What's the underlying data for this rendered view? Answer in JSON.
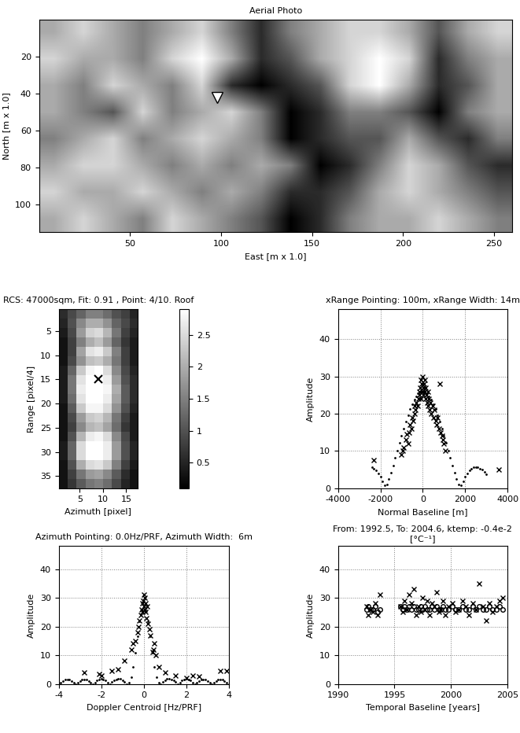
{
  "chart_data": [
    {
      "type": "image",
      "title": "Aerial Photo",
      "x_label": "East [m x 1.0]",
      "y_label": "North [m x 1.0]",
      "xlim": [
        0,
        260
      ],
      "ylim": [
        115,
        0
      ],
      "xticks": [
        50,
        100,
        150,
        200,
        250
      ],
      "yticks": [
        20,
        40,
        60,
        80,
        100
      ],
      "grid": false,
      "cells": [
        [
          0.6,
          0.7,
          0.6,
          0.5,
          0.6,
          0.7,
          0.5,
          0.3,
          0.5,
          0.6,
          0.7,
          0.7,
          0.6,
          0.4,
          0.6,
          0.7
        ],
        [
          0.7,
          0.6,
          0.6,
          0.5,
          0.7,
          0.8,
          0.6,
          0.3,
          0.4,
          0.6,
          0.7,
          0.8,
          0.7,
          0.3,
          0.5,
          0.6
        ],
        [
          0.6,
          0.5,
          0.7,
          0.6,
          0.5,
          0.7,
          0.3,
          0.2,
          0.3,
          0.4,
          0.7,
          0.8,
          0.6,
          0.3,
          0.4,
          0.6
        ],
        [
          0.6,
          0.5,
          0.4,
          0.7,
          0.5,
          0.6,
          0.7,
          0.5,
          0.2,
          0.3,
          0.5,
          0.5,
          0.4,
          0.2,
          0.5,
          0.6
        ],
        [
          0.5,
          0.6,
          0.7,
          0.5,
          0.6,
          0.7,
          0.6,
          0.5,
          0.2,
          0.3,
          0.4,
          0.4,
          0.6,
          0.4,
          0.3,
          0.5
        ],
        [
          0.6,
          0.7,
          0.7,
          0.6,
          0.5,
          0.6,
          0.5,
          0.6,
          0.5,
          0.2,
          0.3,
          0.5,
          0.7,
          0.6,
          0.4,
          0.3
        ],
        [
          0.7,
          0.6,
          0.6,
          0.7,
          0.6,
          0.5,
          0.6,
          0.5,
          0.3,
          0.3,
          0.4,
          0.6,
          0.7,
          0.6,
          0.5,
          0.4
        ],
        [
          0.6,
          0.7,
          0.6,
          0.5,
          0.7,
          0.6,
          0.5,
          0.4,
          0.2,
          0.3,
          0.5,
          0.6,
          0.6,
          0.7,
          0.6,
          0.5
        ]
      ],
      "marker_point": {
        "x": 98,
        "y": 42,
        "marker": "triangle_down",
        "color": "white"
      }
    },
    {
      "type": "heatmap",
      "title": "RCS: 47000sqm, Fit: 0.91 , Point: 4/10. Roof",
      "x_label": "Azimuth [pixel]",
      "y_label": "Range [pixel/4]",
      "xlim": [
        0.5,
        17.5
      ],
      "ylim": [
        37.5,
        0.5
      ],
      "xticks": [
        5,
        10,
        15
      ],
      "yticks": [
        5,
        10,
        15,
        20,
        25,
        30,
        35
      ],
      "grid": false,
      "cells": [
        [
          0.6,
          0.9,
          1.2,
          1.5,
          1.5,
          1.3,
          1.0,
          0.8,
          0.5
        ],
        [
          0.5,
          1.0,
          1.6,
          2.0,
          2.0,
          1.7,
          1.2,
          0.9,
          0.6
        ],
        [
          0.4,
          0.9,
          1.8,
          2.4,
          2.5,
          2.1,
          1.4,
          0.8,
          0.5
        ],
        [
          0.3,
          0.8,
          1.5,
          2.0,
          2.2,
          1.8,
          1.2,
          0.7,
          0.4
        ],
        [
          0.3,
          0.8,
          1.9,
          2.6,
          2.7,
          2.3,
          1.5,
          0.8,
          0.4
        ],
        [
          0.3,
          0.9,
          1.7,
          2.2,
          2.3,
          2.0,
          1.4,
          0.8,
          0.4
        ],
        [
          0.4,
          1.2,
          2.3,
          2.8,
          2.9,
          2.5,
          1.6,
          0.9,
          0.5
        ],
        [
          0.4,
          1.4,
          2.6,
          2.9,
          2.9,
          2.7,
          1.8,
          1.0,
          0.6
        ],
        [
          0.4,
          1.4,
          2.7,
          2.9,
          2.9,
          2.8,
          2.0,
          1.1,
          0.6
        ],
        [
          0.4,
          1.3,
          2.6,
          2.9,
          2.9,
          2.7,
          1.9,
          1.1,
          0.6
        ],
        [
          0.3,
          1.1,
          2.3,
          2.8,
          2.8,
          2.5,
          1.7,
          1.0,
          0.5
        ],
        [
          0.3,
          0.9,
          1.8,
          2.3,
          2.4,
          2.1,
          1.4,
          0.8,
          0.4
        ],
        [
          0.3,
          0.8,
          1.6,
          2.1,
          2.2,
          1.9,
          1.3,
          0.7,
          0.4
        ],
        [
          0.3,
          1.0,
          2.1,
          2.7,
          2.8,
          2.5,
          1.6,
          0.9,
          0.4
        ],
        [
          0.4,
          1.2,
          2.5,
          2.9,
          2.9,
          2.7,
          1.8,
          1.0,
          0.5
        ],
        [
          0.4,
          1.2,
          2.5,
          2.9,
          2.9,
          2.7,
          1.8,
          1.0,
          0.5
        ],
        [
          0.3,
          1.0,
          2.0,
          2.5,
          2.6,
          2.3,
          1.5,
          0.8,
          0.4
        ],
        [
          0.3,
          0.8,
          1.4,
          1.8,
          1.9,
          1.6,
          1.1,
          0.6,
          0.3
        ],
        [
          0.3,
          0.7,
          1.1,
          1.4,
          1.5,
          1.3,
          0.9,
          0.5,
          0.3
        ]
      ],
      "colorbar_range": [
        0.1,
        2.9
      ],
      "colorbar_ticks": [
        0.5,
        1,
        1.5,
        2,
        2.5
      ],
      "marker_point": {
        "x": 9,
        "y": 15,
        "marker": "x",
        "color": "black"
      }
    },
    {
      "type": "scatter",
      "title": "xRange Pointing: 100m, xRange Width: 14m",
      "x_label": "Normal Baseline [m]",
      "y_label": "Amplitude",
      "xlim": [
        -4000,
        4000
      ],
      "ylim": [
        0,
        48
      ],
      "xticks": [
        -4000,
        -2000,
        0,
        2000,
        4000
      ],
      "yticks": [
        0,
        10,
        20,
        30,
        40
      ],
      "grid": true,
      "series": [
        {
          "marker": "x",
          "color": "black",
          "x": [
            -2300,
            3600,
            -1000,
            -950,
            -900,
            -800,
            -750,
            -700,
            -650,
            -600,
            -550,
            -500,
            -450,
            -400,
            -380,
            -350,
            -300,
            -250,
            -200,
            -180,
            -150,
            -120,
            -100,
            -80,
            -50,
            -30,
            0,
            20,
            40,
            60,
            80,
            100,
            120,
            150,
            180,
            200,
            230,
            260,
            300,
            330,
            360,
            400,
            450,
            500,
            550,
            600,
            650,
            700,
            750,
            800,
            850,
            900,
            950,
            1000,
            1050
          ],
          "values": [
            7.5,
            5,
            9,
            10,
            11,
            13,
            14.5,
            12,
            15,
            17,
            16,
            19,
            18,
            20,
            22,
            21,
            23,
            22,
            24,
            26,
            25,
            27,
            29,
            24,
            28,
            26,
            30,
            27,
            25,
            28,
            26,
            29,
            24,
            27,
            25,
            23,
            26,
            22,
            24,
            21,
            23,
            20,
            22,
            19,
            21,
            18,
            17,
            19,
            16,
            28,
            15,
            14,
            13,
            12,
            10
          ]
        },
        {
          "marker": "point",
          "color": "black",
          "x": [
            -2400,
            -2300,
            -2200,
            -2100,
            -2000,
            -1900,
            -1800,
            -1700,
            -1600,
            -1500,
            -1400,
            -1300,
            -1200,
            -1100,
            -1000,
            -900,
            -800,
            -700,
            -600,
            -500,
            -400,
            -300,
            -200,
            -100,
            0,
            100,
            200,
            300,
            400,
            500,
            600,
            700,
            800,
            900,
            1000,
            1100,
            1200,
            1300,
            1400,
            1500,
            1600,
            1700,
            1800,
            1900,
            2000,
            2100,
            2200,
            2300,
            2400,
            2500,
            2600,
            2700,
            2800,
            2900,
            3000
          ],
          "values": [
            5.6,
            5.3,
            4.8,
            4.0,
            3.1,
            1.9,
            0.7,
            0.9,
            2.4,
            4.2,
            6.1,
            8.1,
            10.1,
            12.1,
            14.1,
            16.0,
            17.9,
            19.6,
            21.2,
            22.6,
            23.8,
            24.7,
            25.4,
            25.8,
            26,
            25.8,
            25.4,
            24.7,
            23.8,
            22.6,
            21.2,
            19.6,
            17.9,
            16.0,
            14.1,
            12.1,
            10.1,
            8.1,
            6.1,
            4.2,
            2.4,
            0.9,
            0.7,
            1.9,
            3.1,
            4.0,
            4.8,
            5.3,
            5.6,
            5.7,
            5.6,
            5.3,
            4.9,
            4.4,
            3.8
          ]
        }
      ]
    },
    {
      "type": "scatter",
      "title": "Azimuth Pointing: 0.0Hz/PRF, Azimuth Width:  6m",
      "x_label": "Doppler Centroid [Hz/PRF]",
      "y_label": "Amplitude",
      "xlim": [
        -4,
        4
      ],
      "ylim": [
        0,
        48
      ],
      "xticks": [
        -4,
        -2,
        0,
        2,
        4
      ],
      "yticks": [
        0,
        10,
        20,
        30,
        40
      ],
      "grid": true,
      "series": [
        {
          "marker": "x",
          "color": "black",
          "x": [
            -2.8,
            -2.1,
            -2.0,
            -1.5,
            -1.2,
            -0.9,
            -0.6,
            -0.5,
            -0.4,
            -0.3,
            -0.25,
            -0.2,
            -0.15,
            -0.1,
            -0.08,
            -0.05,
            -0.03,
            0,
            0.02,
            0.04,
            0.06,
            0.08,
            0.1,
            0.12,
            0.15,
            0.2,
            0.25,
            0.3,
            0.4,
            0.45,
            0.5,
            0.55,
            0.7,
            1.0,
            1.5,
            2.0,
            2.3,
            2.6,
            3.6,
            3.9
          ],
          "values": [
            4,
            3.5,
            3,
            4.5,
            5,
            8,
            12,
            14,
            15,
            18,
            20,
            22,
            24,
            26,
            28,
            25,
            29,
            31,
            27,
            30,
            26,
            28,
            25,
            23,
            27,
            21,
            19,
            17,
            11,
            12,
            14,
            10,
            6,
            4,
            3,
            2,
            3,
            2.5,
            4.5,
            4.5
          ]
        },
        {
          "marker": "point",
          "color": "black",
          "x": [
            -4.0,
            -3.9,
            -3.8,
            -3.7,
            -3.6,
            -3.5,
            -3.4,
            -3.3,
            -3.2,
            -3.1,
            -3.0,
            -2.9,
            -2.8,
            -2.7,
            -2.6,
            -2.5,
            -2.4,
            -2.3,
            -2.2,
            -2.1,
            -2.0,
            -1.9,
            -1.8,
            -1.7,
            -1.6,
            -1.5,
            -1.4,
            -1.3,
            -1.2,
            -1.1,
            -1.0,
            -0.9,
            -0.8,
            -0.7,
            -0.6,
            -0.5,
            -0.4,
            -0.3,
            -0.2,
            -0.1,
            0,
            0.1,
            0.2,
            0.3,
            0.4,
            0.5,
            0.6,
            0.7,
            0.8,
            0.9,
            1.0,
            1.1,
            1.2,
            1.3,
            1.4,
            1.5,
            1.6,
            1.7,
            1.8,
            1.9,
            2.0,
            2.1,
            2.2,
            2.3,
            2.4,
            2.5,
            2.6,
            2.7,
            2.8,
            2.9,
            3.0,
            3.1,
            3.2,
            3.3,
            3.4,
            3.5,
            3.6,
            3.7,
            3.8,
            3.9,
            4.0
          ],
          "values": [
            0,
            0.5,
            1.0,
            1.4,
            1.5,
            1.4,
            1.0,
            0.5,
            0,
            0.5,
            1.1,
            1.5,
            1.6,
            1.5,
            1.1,
            0.5,
            0,
            0.5,
            1.2,
            1.6,
            1.7,
            1.6,
            1.2,
            0.5,
            0,
            0.6,
            1.2,
            1.6,
            1.8,
            1.7,
            1.3,
            0.6,
            0,
            0.5,
            2.4,
            6.0,
            10.9,
            16.6,
            21.9,
            25.7,
            27,
            25.7,
            21.9,
            16.6,
            10.9,
            6.0,
            2.4,
            0.5,
            0,
            0.6,
            1.3,
            1.7,
            1.8,
            1.6,
            1.2,
            0.6,
            0,
            0.5,
            1.2,
            1.6,
            1.7,
            1.6,
            1.2,
            0.5,
            0,
            0.5,
            1.1,
            1.5,
            1.6,
            1.5,
            1.1,
            0.5,
            0,
            0.5,
            1.0,
            1.4,
            1.5,
            1.4,
            1.0,
            0.5,
            0
          ]
        }
      ]
    },
    {
      "type": "scatter",
      "title": "From: 1992.5, To: 2004.6, ktemp: -0.4e-2 [°C⁻¹]",
      "x_label": "Temporal Baseline [years]",
      "y_label": "Amplitude",
      "xlim": [
        1990,
        2005
      ],
      "ylim": [
        0,
        48
      ],
      "xticks": [
        1990,
        1995,
        2000,
        2005
      ],
      "yticks": [
        0,
        10,
        20,
        30,
        40
      ],
      "grid": true,
      "series": [
        {
          "marker": "x",
          "color": "black",
          "x": [
            1992.5,
            1992.7,
            1992.9,
            1993.1,
            1993.3,
            1993.5,
            1993.7,
            1995.5,
            1995.7,
            1995.9,
            1996.1,
            1996.3,
            1996.5,
            1996.7,
            1996.9,
            1997.1,
            1997.3,
            1997.5,
            1997.7,
            1997.9,
            1998.1,
            1998.3,
            1998.5,
            1998.7,
            1998.9,
            1999.1,
            1999.3,
            1999.5,
            1999.8,
            2000.1,
            2000.4,
            2000.7,
            2001.0,
            2001.3,
            2001.6,
            2001.9,
            2002.2,
            2002.5,
            2002.8,
            2003.1,
            2003.4,
            2003.7,
            2004.0,
            2004.3,
            2004.6
          ],
          "values": [
            27,
            24,
            26,
            25,
            28,
            24,
            31,
            27,
            25,
            29,
            26,
            31,
            28,
            33,
            24,
            27,
            25,
            30,
            26,
            29,
            24,
            28,
            27,
            32,
            25,
            26,
            29,
            24,
            27,
            28,
            25,
            26,
            29,
            27,
            24,
            28,
            26,
            35,
            27,
            22,
            28,
            25,
            27,
            29,
            30
          ]
        },
        {
          "marker": "circle",
          "color": "black",
          "x": [
            1992.5,
            1992.7,
            1992.9,
            1993.1,
            1993.3,
            1993.5,
            1993.7,
            1995.5,
            1995.7,
            1995.9,
            1996.1,
            1996.3,
            1996.5,
            1996.7,
            1996.9,
            1997.1,
            1997.3,
            1997.5,
            1997.7,
            1997.9,
            1998.1,
            1998.3,
            1998.5,
            1998.7,
            1998.9,
            1999.1,
            1999.3,
            1999.5,
            1999.8,
            2000.1,
            2000.4,
            2000.7,
            2001.0,
            2001.3,
            2001.6,
            2001.9,
            2002.2,
            2002.5,
            2002.8,
            2003.1,
            2003.4,
            2003.7,
            2004.0,
            2004.3,
            2004.6
          ],
          "values": [
            26,
            27,
            26,
            26,
            27,
            25,
            26,
            27,
            26,
            27,
            26,
            27,
            26,
            27,
            26,
            26,
            27,
            26,
            27,
            26,
            26,
            27,
            26,
            27,
            26,
            26,
            27,
            26,
            26,
            27,
            26,
            26,
            27,
            26,
            26,
            27,
            26,
            27,
            26,
            26,
            27,
            26,
            26,
            27,
            26
          ]
        }
      ]
    }
  ]
}
